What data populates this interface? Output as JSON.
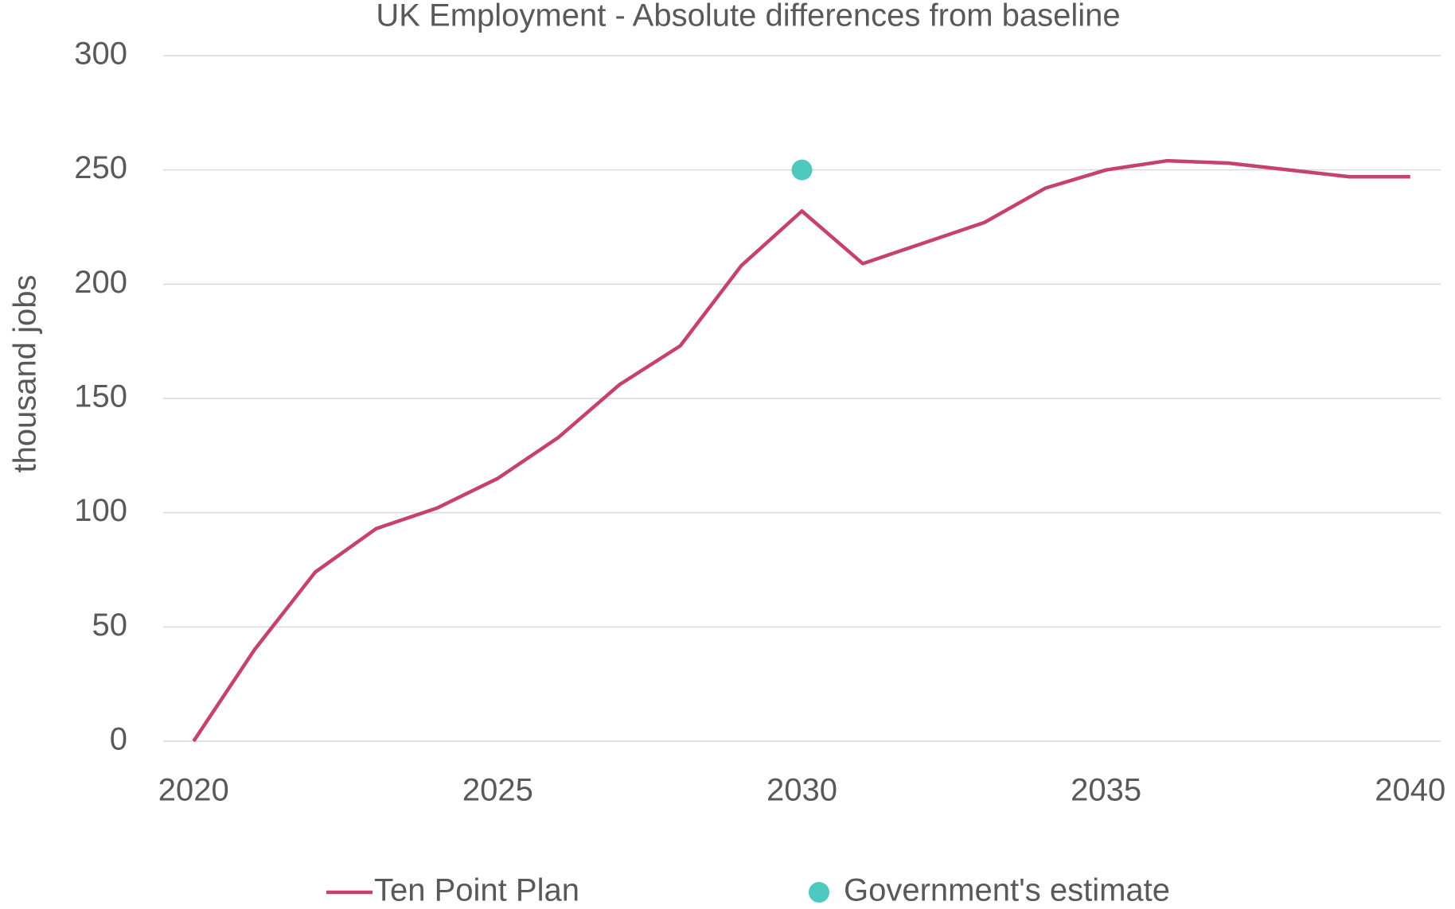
{
  "chart_data": {
    "type": "line",
    "title": "UK Employment - Absolute differences from baseline",
    "y_label": "thousand jobs",
    "x": [
      2020,
      2021,
      2022,
      2023,
      2024,
      2025,
      2026,
      2027,
      2028,
      2029,
      2030,
      2031,
      2032,
      2033,
      2034,
      2035,
      2036,
      2037,
      2038,
      2039,
      2040
    ],
    "series": [
      {
        "name": "Ten Point Plan",
        "color": "#c5426f",
        "type": "line",
        "values": [
          0,
          40,
          74,
          93,
          102,
          115,
          133,
          156,
          173,
          208,
          232,
          209,
          218,
          227,
          242,
          250,
          254,
          253,
          250,
          247,
          247
        ]
      },
      {
        "name": "Government's estimate",
        "color": "#4ec9c0",
        "type": "scatter",
        "x": [
          2030
        ],
        "values": [
          250
        ]
      }
    ],
    "xlim": [
      2019.5,
      2040.5
    ],
    "xticks": [
      2020,
      2025,
      2030,
      2035,
      2040
    ],
    "ylim": [
      0,
      300
    ],
    "yticks": [
      0,
      50,
      100,
      150,
      200,
      250,
      300
    ],
    "grid": true,
    "legend": "bottom"
  }
}
